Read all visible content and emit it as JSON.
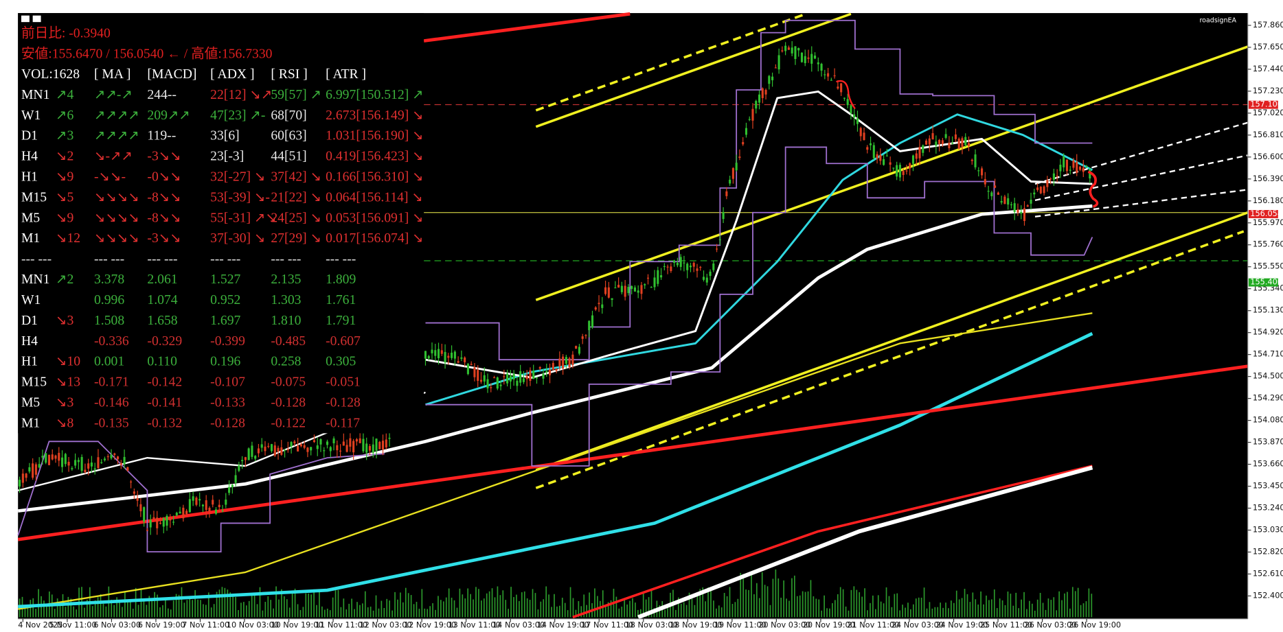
{
  "toolbar_label": "roadsignEA",
  "info": {
    "change": "前日比: -0.3940",
    "range": "安値:155.6470 / 156.0540 ← / 高値:156.7330",
    "header": [
      "VOL:1628",
      "[ MA ]",
      "[MACD]",
      "[ ADX ]",
      "[ RSI ]",
      "[ ATR ]"
    ],
    "rows": [
      [
        "MN1",
        "↗4",
        "↗↗-↗",
        "244--",
        "22[12] ↘↗",
        "59[57] ↗",
        "6.997[150.512] ↗"
      ],
      [
        "W1",
        "↗6",
        "↗↗↗↗",
        "209↗↗",
        "47[23] ↗-",
        "68[70]",
        "2.673[156.149] ↘"
      ],
      [
        "D1",
        "↗3",
        "↗↗↗↗",
        "119--",
        "33[6]",
        "60[63]",
        "1.031[156.190] ↘"
      ],
      [
        "H4",
        "↘2",
        "↘-↗↗",
        "-3↘↘",
        "23[-3]",
        "44[51]",
        "0.419[156.423] ↘"
      ],
      [
        "H1",
        "↘9",
        "-↘↘-",
        "-0↘↘",
        "32[-27] ↘",
        "37[42] ↘",
        "0.166[156.310] ↘"
      ],
      [
        "M15",
        "↘5",
        "↘↘↘↘",
        "-8↘↘",
        "53[-39] ↘-",
        "21[22] ↘",
        "0.064[156.114] ↘"
      ],
      [
        "M5",
        "↘9",
        "↘↘↘↘",
        "-8↘↘",
        "55[-31] ↗↘",
        "24[25] ↘",
        "0.053[156.091] ↘"
      ],
      [
        "M1",
        "↘12",
        "↘↘↘↘",
        "-3↘↘",
        "37[-30] ↘",
        "27[29] ↘",
        "0.017[156.074] ↘"
      ]
    ],
    "separator": [
      "--- ---",
      "--- ---",
      "--- ---",
      "--- ---",
      "--- ---",
      "--- ---"
    ],
    "rows2": [
      [
        "MN1",
        "↗2",
        "3.378",
        "2.061",
        "1.527",
        "2.135",
        "1.809"
      ],
      [
        "W1",
        "",
        "0.996",
        "1.074",
        "0.952",
        "1.303",
        "1.761"
      ],
      [
        "D1",
        "↘3",
        "1.508",
        "1.658",
        "1.697",
        "1.810",
        "1.791"
      ],
      [
        "H4",
        "",
        "-0.336",
        "-0.329",
        "-0.399",
        "-0.485",
        "-0.607"
      ],
      [
        "H1",
        "↘10",
        "0.001",
        "0.110",
        "0.196",
        "0.258",
        "0.305"
      ],
      [
        "M15",
        "↘13",
        "-0.171",
        "-0.142",
        "-0.107",
        "-0.075",
        "-0.051"
      ],
      [
        "M5",
        "↘3",
        "-0.146",
        "-0.141",
        "-0.133",
        "-0.128",
        "-0.128"
      ],
      [
        "M1",
        "↘8",
        "-0.135",
        "-0.132",
        "-0.128",
        "-0.122",
        "-0.117"
      ]
    ]
  },
  "price_axis": {
    "ticks": [
      "157.860",
      "157.650",
      "157.440",
      "157.230",
      "157.020",
      "156.810",
      "156.600",
      "156.390",
      "156.180",
      "155.970",
      "155.760",
      "155.550",
      "155.340",
      "155.130",
      "154.920",
      "154.710",
      "154.500",
      "154.290",
      "154.080",
      "153.870",
      "153.660",
      "153.450",
      "153.240",
      "153.030",
      "152.820",
      "152.610",
      "152.400"
    ],
    "markers": [
      {
        "label": "157.100",
        "color": "#e02020"
      },
      {
        "label": "156.054",
        "color": "#e02020"
      },
      {
        "label": "155.400",
        "color": "#22aa22"
      }
    ]
  },
  "time_axis": {
    "labels": [
      "4 Nov 2025",
      "5 Nov 11:00",
      "6 Nov 03:00",
      "6 Nov 19:00",
      "7 Nov 11:00",
      "10 Nov 03:00",
      "10 Nov 19:00",
      "11 Nov 11:00",
      "12 Nov 03:00",
      "12 Nov 19:00",
      "13 Nov 11:00",
      "14 Nov 03:00",
      "14 Nov 19:00",
      "17 Nov 11:00",
      "18 Nov 03:00",
      "18 Nov 19:00",
      "19 Nov 11:00",
      "20 Nov 03:00",
      "20 Nov 19:00",
      "21 Nov 11:00",
      "24 Nov 03:00",
      "24 Nov 19:00",
      "25 Nov 11:00",
      "26 Nov 03:00",
      "26 Nov 19:00"
    ]
  }
}
